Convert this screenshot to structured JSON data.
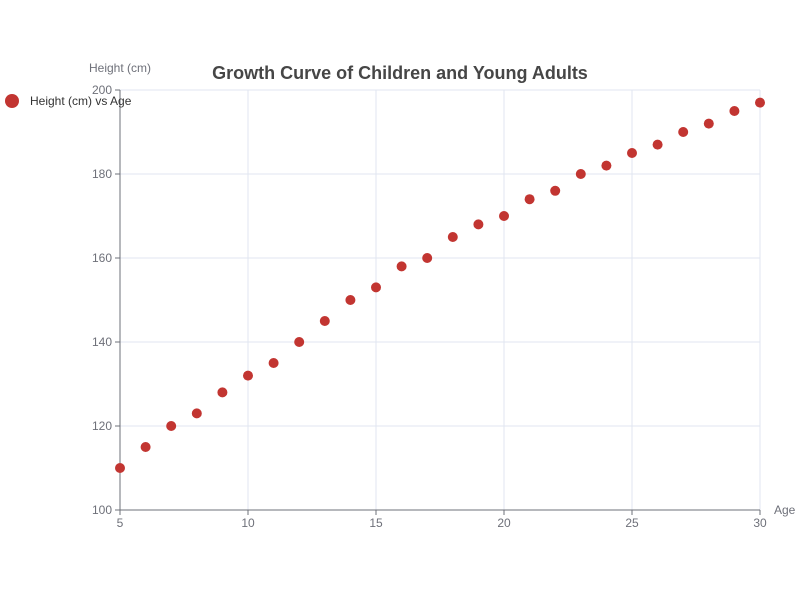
{
  "chart_data": {
    "type": "scatter",
    "title": "Growth Curve of Children and Young Adults",
    "xlabel": "Age",
    "ylabel": "Height (cm)",
    "xlim": [
      5,
      30
    ],
    "ylim": [
      100,
      200
    ],
    "x_ticks": [
      5,
      10,
      15,
      20,
      25,
      30
    ],
    "y_ticks": [
      100,
      120,
      140,
      160,
      180,
      200
    ],
    "grid": true,
    "legend_position": "top-left",
    "series": [
      {
        "name": "Height (cm) vs Age",
        "color": "#c23531",
        "x": [
          5,
          6,
          7,
          8,
          9,
          10,
          11,
          12,
          13,
          14,
          15,
          16,
          17,
          18,
          19,
          20,
          21,
          22,
          23,
          24,
          25,
          26,
          27,
          28,
          29,
          30
        ],
        "y": [
          110,
          115,
          120,
          123,
          128,
          132,
          135,
          140,
          145,
          150,
          153,
          158,
          160,
          165,
          168,
          170,
          174,
          176,
          180,
          182,
          185,
          187,
          190,
          192,
          195,
          197
        ]
      }
    ]
  }
}
